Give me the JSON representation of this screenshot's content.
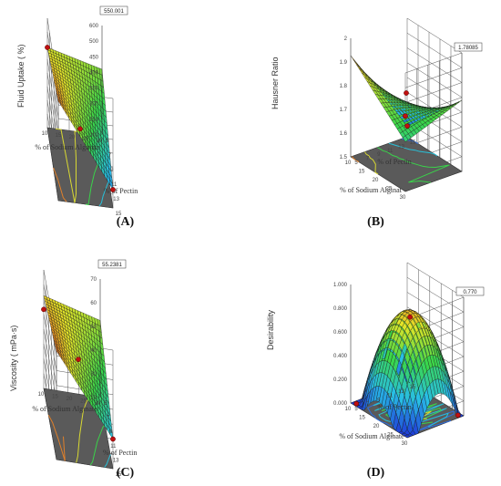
{
  "chart_data": [
    {
      "type": "surface3d",
      "panel": "(A)",
      "zlabel": "Fluid Uptake ( %)",
      "xlabel": "% of Sodium Alginate",
      "ylabel": "% of Pectin",
      "x_ticks": [
        "30",
        "25",
        "20",
        "15",
        "10"
      ],
      "y_ticks": [
        "5",
        "7",
        "9",
        "11",
        "13",
        "15"
      ],
      "z_ticks": [
        "200",
        "250",
        "300",
        "350",
        "400",
        "450",
        "500",
        "600"
      ],
      "zlim": [
        150,
        600
      ],
      "flag_value": "550.001",
      "corner_values": {
        "back_left": 480,
        "back_right": 560,
        "front_left": 420,
        "front_right": 225
      },
      "design_points": [
        480,
        310,
        225
      ]
    },
    {
      "type": "surface3d",
      "panel": "(B)",
      "zlabel": "Hausner Ratio",
      "xlabel": "% of Sodium Alginat",
      "ylabel": "% of Pectin",
      "x_ticks": [
        "10",
        "15",
        "20",
        "25",
        "30"
      ],
      "y_ticks": [
        "5",
        "7",
        "9",
        "11",
        "13",
        "15"
      ],
      "z_ticks": [
        "1.5",
        "1.6",
        "1.7",
        "1.8",
        "1.9",
        "2"
      ],
      "zlim": [
        1.45,
        2.0
      ],
      "flag_value": "1.78085",
      "corner_values": {
        "back_left": 1.68,
        "back_right": 1.78,
        "front_left": 1.92,
        "front_right": 1.5
      },
      "design_points": [
        1.8,
        1.78,
        1.5
      ]
    },
    {
      "type": "surface3d",
      "panel": "(C)",
      "zlabel": "Viscosity ( mPa·s)",
      "xlabel": "% of Sodium Alginate",
      "ylabel": "% of Pectin",
      "x_ticks": [
        "30",
        "25",
        "20",
        "15",
        "10"
      ],
      "y_ticks": [
        "5",
        "7",
        "9",
        "11",
        "13",
        "15"
      ],
      "z_ticks": [
        "20",
        "30",
        "40",
        "50",
        "60",
        "70"
      ],
      "zlim": [
        15,
        75
      ],
      "flag_value": "55.2381",
      "corner_values": {
        "back_left": 62,
        "back_right": 70,
        "front_left": 54,
        "front_right": 30
      },
      "design_points": [
        55,
        50,
        30
      ]
    },
    {
      "type": "surface3d",
      "panel": "(D)",
      "zlabel": "Desirability",
      "xlabel": "% of Sodium Alginate",
      "ylabel": "% of Pectin",
      "x_ticks": [
        "10",
        "15",
        "20",
        "25",
        "30"
      ],
      "y_ticks": [
        "5",
        "7",
        "9",
        "11",
        "13",
        "15"
      ],
      "z_ticks": [
        "0.000",
        "0.200",
        "0.400",
        "0.600",
        "0.800",
        "1.000"
      ],
      "zlim": [
        0,
        1
      ],
      "flag_value": "0.770",
      "shape": "dome",
      "design_points": [
        0.77,
        0.0,
        0.0
      ]
    }
  ],
  "colors": {
    "low": "#1f3fd8",
    "mid": "#39d64a",
    "high": "#e8261a",
    "floor": "#5a5a5a",
    "grid": "#333333"
  }
}
